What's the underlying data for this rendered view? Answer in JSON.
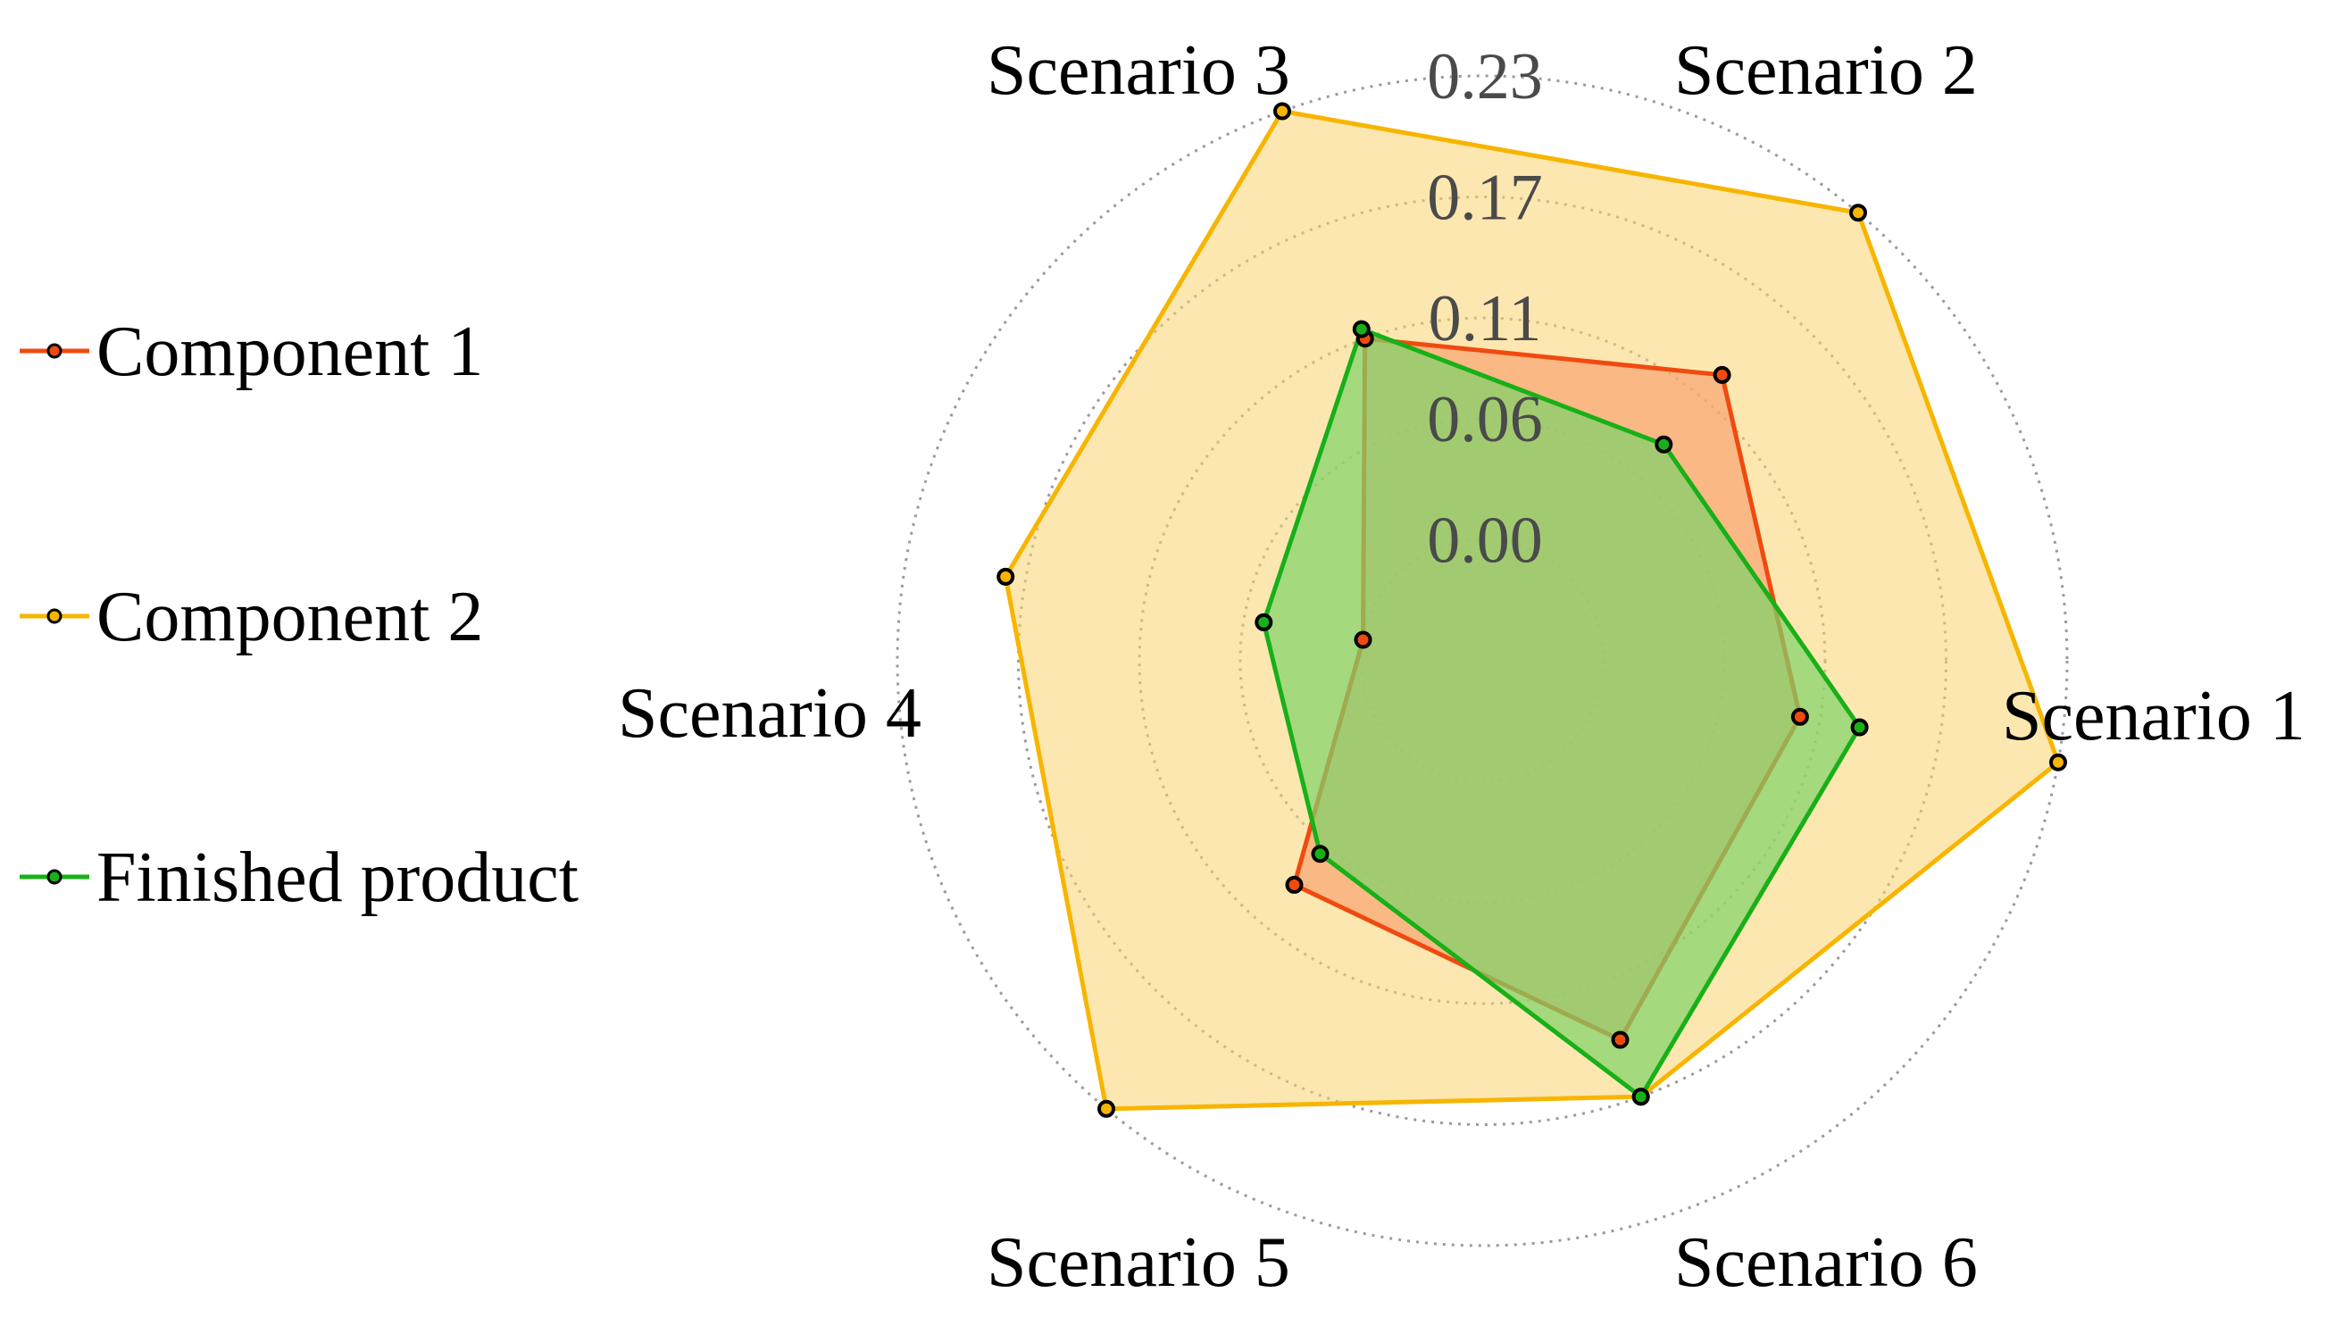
{
  "chart_data": {
    "type": "radar",
    "axes": [
      "Scenario 1",
      "Scenario 2",
      "Scenario 3",
      "Scenario 4",
      "Scenario 5",
      "Scenario 6"
    ],
    "radial_ticks": [
      "0.00",
      "0.06",
      "0.11",
      "0.17",
      "0.23"
    ],
    "radial_range": [
      -0.06,
      0.23
    ],
    "grid": "dotted circles",
    "legend_position": "left",
    "series": [
      {
        "name": "Finished product",
        "color": "#18b018",
        "fill": "#7ed36a",
        "values": [
          0.13,
          0.08,
          0.115,
          0.05,
          0.065,
          0.17
        ]
      },
      {
        "name": "Component 1",
        "color": "#f04a10",
        "fill": "#f7a472",
        "values": [
          0.1,
          0.125,
          0.11,
          0.0,
          0.085,
          0.14
        ]
      },
      {
        "name": "Component 2",
        "color": "#f7b500",
        "fill": "#fbd470",
        "values": [
          0.23,
          0.23,
          0.23,
          0.18,
          0.23,
          0.17
        ]
      }
    ]
  },
  "legend": {
    "items": [
      {
        "label": "Component 1",
        "color": "#f04a10"
      },
      {
        "label": "Component 2",
        "color": "#f7b500"
      },
      {
        "label": "Finished product",
        "color": "#18b018"
      }
    ]
  }
}
